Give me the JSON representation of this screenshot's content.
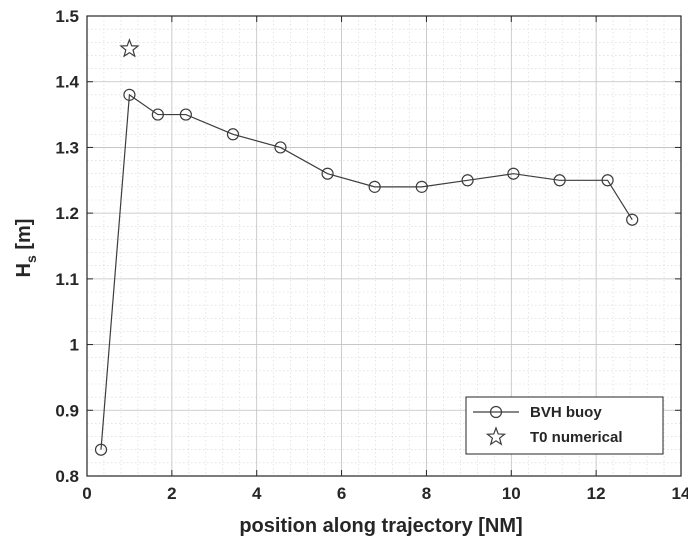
{
  "chart_data": {
    "type": "line",
    "xlabel": "position along trajectory [NM]",
    "ylabel_main": "H",
    "ylabel_sub": "s",
    "ylabel_unit": " [m]",
    "xlim": [
      0,
      14
    ],
    "ylim": [
      0.8,
      1.5
    ],
    "x_ticks": [
      "0",
      "2",
      "4",
      "6",
      "8",
      "10",
      "12",
      "14"
    ],
    "y_ticks": [
      "0.8",
      "0.9",
      "1",
      "1.1",
      "1.2",
      "1.3",
      "1.4",
      "1.5"
    ],
    "grid": true,
    "minor_grid": true,
    "legend_position": "bottom-right",
    "series": [
      {
        "name": "BVH buoy",
        "marker": "circle",
        "line": true,
        "color": "#3d3d3d",
        "x": [
          0.33,
          1.0,
          1.67,
          2.33,
          3.44,
          4.56,
          5.67,
          6.78,
          7.89,
          8.97,
          10.05,
          11.14,
          12.27,
          12.85
        ],
        "y": [
          0.84,
          1.38,
          1.35,
          1.35,
          1.32,
          1.3,
          1.26,
          1.24,
          1.24,
          1.25,
          1.26,
          1.25,
          1.25,
          1.19
        ]
      },
      {
        "name": "T0 numerical",
        "marker": "star",
        "line": false,
        "color": "#3d3d3d",
        "x": [
          1.0
        ],
        "y": [
          1.45
        ]
      }
    ]
  }
}
